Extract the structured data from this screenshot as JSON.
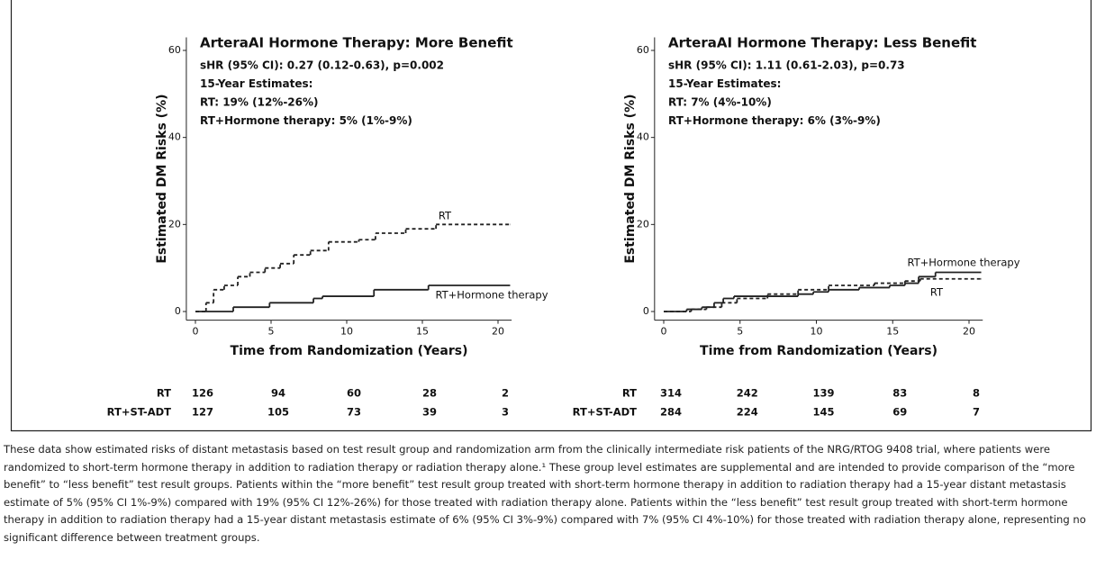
{
  "chart_data": [
    {
      "type": "step",
      "title": "ArteraAI Hormone Therapy: More Benefit",
      "annotations": [
        "sHR (95% CI): 0.27 (0.12-0.63), p=0.002",
        "15-Year Estimates:",
        "RT: 19% (12%-26%)",
        "RT+Hormone therapy: 5% (1%-9%)"
      ],
      "xlabel": "Time from Randomization (Years)",
      "ylabel": "Estimated DM Risks (%)",
      "xlim": [
        -0.6,
        20.9
      ],
      "ylim": [
        -2,
        63
      ],
      "xticks": [
        0,
        5,
        10,
        15,
        20
      ],
      "yticks": [
        0,
        20,
        40,
        60
      ],
      "series": [
        {
          "name": "RT",
          "color": "#222222",
          "dashed": true,
          "x": [
            0,
            0.7,
            1.2,
            1.9,
            2.8,
            3.6,
            4.6,
            5.6,
            6.5,
            7.6,
            8.8,
            10.8,
            11.9,
            13.9,
            15.9,
            20.8
          ],
          "values": [
            0,
            2,
            5,
            6,
            8,
            9,
            10,
            11,
            13,
            14,
            16,
            16.5,
            18,
            19,
            20,
            20
          ]
        },
        {
          "name": "RT+Hormone therapy",
          "color": "#222222",
          "dashed": false,
          "x": [
            0,
            2.5,
            4.9,
            7.8,
            8.4,
            11.8,
            15.4,
            20.8
          ],
          "values": [
            0,
            1,
            2,
            3,
            3.5,
            5,
            6,
            6
          ]
        }
      ],
      "risk_table": [
        {
          "label": "RT",
          "values": [
            126,
            94,
            60,
            28,
            2
          ]
        },
        {
          "label": "RT+ST-ADT",
          "values": [
            127,
            105,
            73,
            39,
            3
          ]
        }
      ]
    },
    {
      "type": "step",
      "title": "ArteraAI Hormone Therapy: Less Benefit",
      "annotations": [
        "sHR (95% CI): 1.11 (0.61-2.03), p=0.73",
        "15-Year Estimates:",
        "RT: 7% (4%-10%)",
        "RT+Hormone therapy: 6% (3%-9%)"
      ],
      "xlabel": "Time from Randomization (Years)",
      "ylabel": "Estimated DM Risks (%)",
      "xlim": [
        -0.6,
        20.9
      ],
      "ylim": [
        -2,
        63
      ],
      "xticks": [
        0,
        5,
        10,
        15,
        20
      ],
      "yticks": [
        0,
        20,
        40,
        60
      ],
      "series": [
        {
          "name": "RT+Hormone therapy",
          "color": "#222222",
          "dashed": false,
          "x": [
            0,
            1.5,
            2.5,
            3.3,
            3.9,
            4.6,
            6.8,
            8.8,
            9.8,
            10.8,
            12.8,
            14.8,
            15.8,
            16.7,
            17.8,
            20.8
          ],
          "values": [
            0,
            0.5,
            1,
            2,
            3,
            3.5,
            3.5,
            4,
            4.5,
            5,
            5.5,
            6,
            6.5,
            8,
            9,
            9
          ]
        },
        {
          "name": "RT",
          "color": "#222222",
          "dashed": true,
          "x": [
            0,
            1.8,
            2.8,
            3.8,
            4.8,
            6.8,
            8.8,
            10.8,
            13.8,
            15.8,
            16.8,
            20.8
          ],
          "values": [
            0,
            0.5,
            1,
            2,
            3,
            4,
            5,
            6,
            6.5,
            7,
            7.5,
            7.5
          ]
        }
      ],
      "risk_table": [
        {
          "label": "RT",
          "values": [
            314,
            242,
            139,
            83,
            8
          ]
        },
        {
          "label": "RT+ST-ADT",
          "values": [
            284,
            224,
            145,
            69,
            7
          ]
        }
      ]
    }
  ],
  "description": "These data show estimated risks of distant metastasis based on test result group and randomization arm from the clinically intermediate risk patients of the NRG/RTOG 9408 trial, where patients were randomized to short-term hormone therapy in addition to radiation therapy or radiation therapy alone.¹ These group level estimates are supplemental and are intended to provide comparison of the “more benefit” to “less benefit” test result groups. Patients within the “more benefit” test result group treated with short-term hormone therapy in addition to radiation therapy had a 15-year distant metastasis estimate of 5% (95% CI 1%-9%) compared with 19% (95% CI 12%-26%) for those treated with radiation therapy alone. Patients within the “less benefit” test result group treated with short-term hormone therapy in addition to radiation therapy had a 15-year distant metastasis estimate of 6% (95% CI 3%-9%) compared with 7% (95% CI 4%-10%) for those treated with radiation therapy alone, representing no significant difference between treatment groups."
}
